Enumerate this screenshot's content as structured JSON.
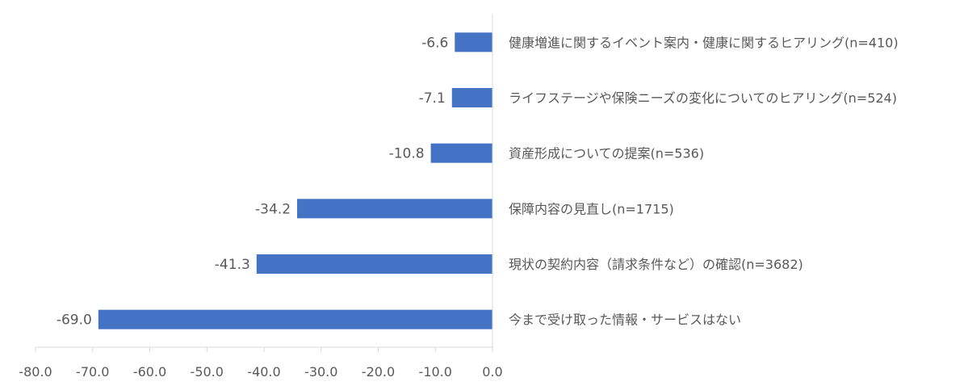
{
  "chart_data": {
    "type": "bar",
    "orientation": "horizontal",
    "categories": [
      "健康増進に関するイベント案内・健康に関するヒアリング(n=410)",
      "ライフステージや保険ニーズの変化についてのヒアリング(n=524)",
      "資産形成についての提案(n=536)",
      "保障内容の見直し(n=1715)",
      "現状の契約内容（請求条件など）の確認(n=3682)",
      "今まで受け取った情報・サービスはない"
    ],
    "values": [
      -6.6,
      -7.1,
      -10.8,
      -34.2,
      -41.3,
      -69.0
    ],
    "value_labels": [
      "-6.6",
      "-7.1",
      "-10.8",
      "-34.2",
      "-41.3",
      "-69.0"
    ],
    "xlim": [
      -80,
      0
    ],
    "x_ticks": [
      "-80.0",
      "-70.0",
      "-60.0",
      "-50.0",
      "-40.0",
      "-30.0",
      "-20.0",
      "-10.0",
      "0.0"
    ],
    "bar_color": "#4472C4",
    "axis_color": "#D9D9D9",
    "text_color": "#595959",
    "grid": false,
    "legend": "none"
  }
}
